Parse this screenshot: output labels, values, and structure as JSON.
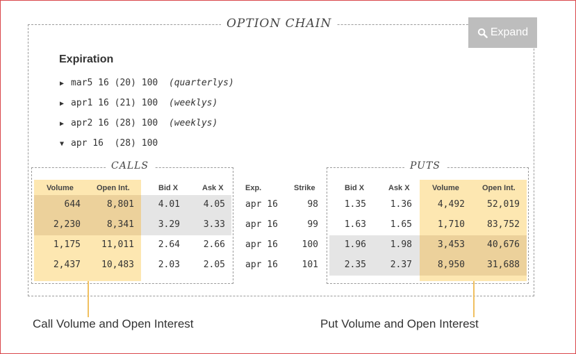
{
  "header": {
    "title": "OPTION CHAIN",
    "expand_label": "Expand"
  },
  "expiration": {
    "label": "Expiration",
    "rows": [
      {
        "arrow": "▶",
        "text": "mar5 16 (20) 100",
        "note": "(quarterlys)"
      },
      {
        "arrow": "▶",
        "text": "apr1 16 (21) 100",
        "note": "(weeklys)"
      },
      {
        "arrow": "▶",
        "text": "apr2 16 (28) 100",
        "note": "(weeklys)"
      },
      {
        "arrow": "▼",
        "text": "apr 16  (28) 100",
        "note": ""
      }
    ]
  },
  "calls": {
    "title": "CALLS"
  },
  "puts": {
    "title": "PUTS"
  },
  "table": {
    "headers": [
      "Volume",
      "Open Int.",
      "Bid X",
      "Ask X",
      "Exp.",
      "Strike",
      "Bid X",
      "Ask X",
      "Volume",
      "Open Int."
    ],
    "rows": [
      [
        "644",
        "8,801",
        "4.01",
        "4.05",
        "apr 16",
        "98",
        "1.35",
        "1.36",
        "4,492",
        "52,019"
      ],
      [
        "2,230",
        "8,341",
        "3.29",
        "3.33",
        "apr 16",
        "99",
        "1.63",
        "1.65",
        "1,710",
        "83,752"
      ],
      [
        "1,175",
        "11,011",
        "2.64",
        "2.66",
        "apr 16",
        "100",
        "1.96",
        "1.98",
        "3,453",
        "40,676"
      ],
      [
        "2,437",
        "10,483",
        "2.03",
        "2.05",
        "apr 16",
        "101",
        "2.35",
        "2.37",
        "8,950",
        "31,688"
      ]
    ]
  },
  "captions": {
    "calls": "Call Volume and Open Interest",
    "puts": "Put Volume and Open Interest"
  },
  "colors": {
    "highlight": "#fde7b1",
    "highlight_dark": "#ecd19b",
    "in_the_money": "#e5e5e5",
    "accent_line": "#f0c060"
  }
}
